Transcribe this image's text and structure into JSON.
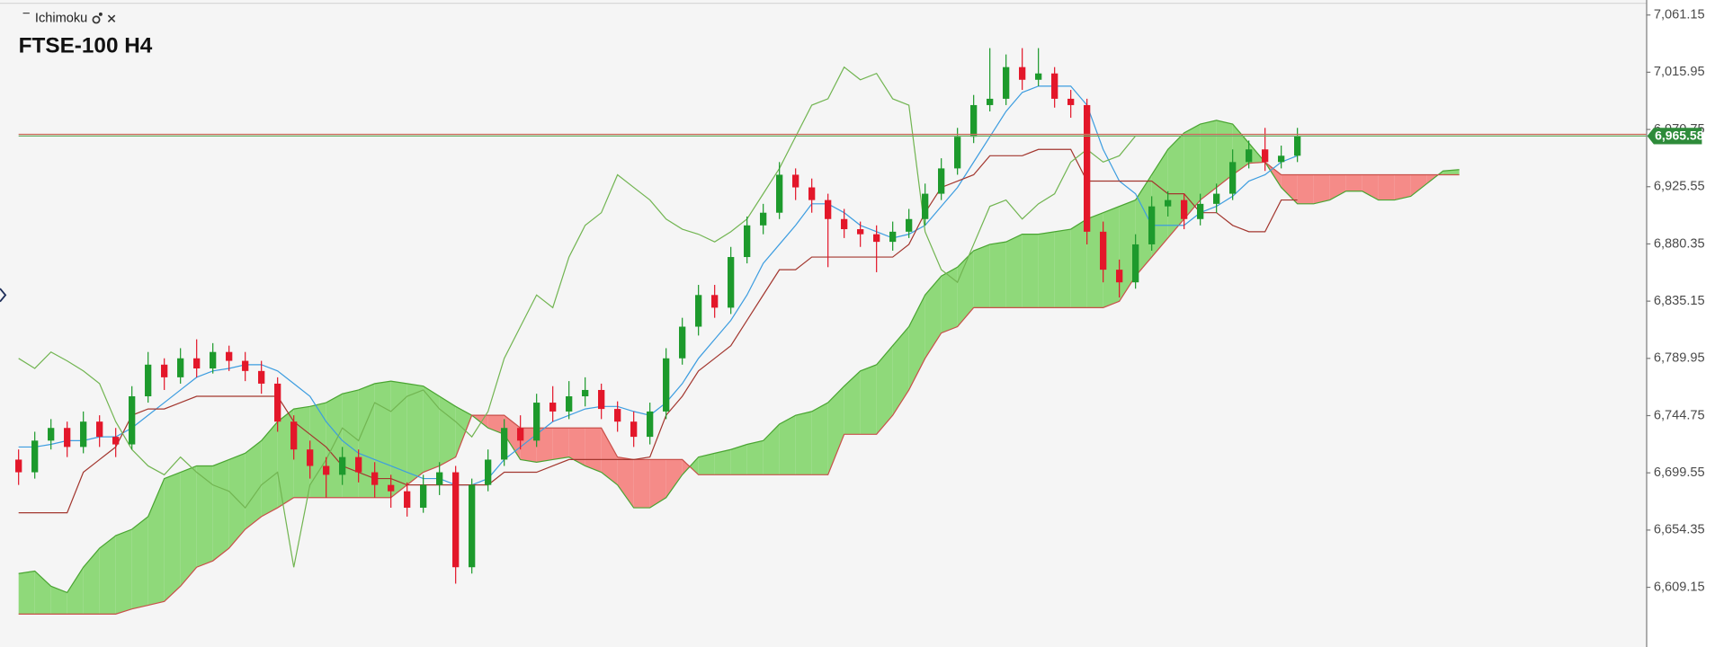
{
  "indicator": "Ichimoku",
  "chart_data": {
    "type": "candlestick",
    "title": "FTSE-100 H4",
    "up_color": "#1d9a2c",
    "down_color": "#e3172a",
    "open": [
      6710,
      6700,
      6725,
      6735,
      6720,
      6740,
      6728,
      6722,
      6760,
      6785,
      6775,
      6790,
      6782,
      6795,
      6788,
      6780,
      6770,
      6740,
      6718,
      6705,
      6698,
      6712,
      6700,
      6690,
      6685,
      6672,
      6690,
      6700,
      6625,
      6690,
      6710,
      6735,
      6725,
      6755,
      6748,
      6760,
      6765,
      6750,
      6740,
      6728,
      6748,
      6790,
      6815,
      6840,
      6830,
      6870,
      6895,
      6905,
      6935,
      6925,
      6915,
      6900,
      6892,
      6888,
      6882,
      6890,
      6900,
      6920,
      6940,
      6965,
      6990,
      6995,
      7020,
      7010,
      7015,
      6995,
      6990,
      6890,
      6860,
      6850,
      6880,
      6910,
      6915,
      6900,
      6912,
      6920,
      6945,
      6955,
      6945,
      6950
    ],
    "high": [
      6718,
      6732,
      6742,
      6740,
      6748,
      6745,
      6735,
      6768,
      6795,
      6790,
      6798,
      6805,
      6802,
      6800,
      6795,
      6788,
      6775,
      6745,
      6725,
      6712,
      6720,
      6718,
      6708,
      6698,
      6692,
      6698,
      6708,
      6705,
      6695,
      6718,
      6742,
      6745,
      6762,
      6768,
      6772,
      6775,
      6770,
      6756,
      6748,
      6755,
      6798,
      6822,
      6848,
      6848,
      6878,
      6902,
      6912,
      6945,
      6940,
      6932,
      6920,
      6908,
      6898,
      6895,
      6898,
      6908,
      6928,
      6948,
      6972,
      6998,
      7035,
      7030,
      7035,
      7035,
      7020,
      7002,
      6995,
      6898,
      6868,
      6888,
      6918,
      6922,
      6920,
      6920,
      6928,
      6955,
      6962,
      6972,
      6958,
      6972
    ],
    "low": [
      6690,
      6695,
      6718,
      6712,
      6715,
      6720,
      6712,
      6718,
      6755,
      6765,
      6770,
      6775,
      6778,
      6780,
      6772,
      6762,
      6732,
      6710,
      6695,
      6680,
      6690,
      6692,
      6680,
      6672,
      6665,
      6668,
      6682,
      6612,
      6620,
      6685,
      6705,
      6718,
      6720,
      6740,
      6742,
      6752,
      6742,
      6732,
      6720,
      6722,
      6742,
      6785,
      6808,
      6822,
      6825,
      6865,
      6888,
      6900,
      6915,
      6905,
      6862,
      6885,
      6878,
      6858,
      6875,
      6885,
      6895,
      6915,
      6935,
      6960,
      6985,
      6990,
      7002,
      7005,
      6988,
      6980,
      6880,
      6850,
      6838,
      6845,
      6875,
      6902,
      6892,
      6895,
      6905,
      6915,
      6940,
      6938,
      6940,
      6945
    ],
    "close": [
      6700,
      6725,
      6735,
      6720,
      6740,
      6728,
      6722,
      6760,
      6785,
      6775,
      6790,
      6782,
      6795,
      6788,
      6780,
      6770,
      6740,
      6718,
      6705,
      6698,
      6712,
      6700,
      6690,
      6685,
      6672,
      6690,
      6700,
      6625,
      6690,
      6710,
      6735,
      6725,
      6755,
      6748,
      6760,
      6765,
      6750,
      6740,
      6728,
      6748,
      6790,
      6815,
      6840,
      6830,
      6870,
      6895,
      6905,
      6935,
      6925,
      6915,
      6900,
      6892,
      6888,
      6882,
      6890,
      6900,
      6920,
      6940,
      6965,
      6990,
      6995,
      7020,
      7010,
      7015,
      6995,
      6990,
      6890,
      6860,
      6850,
      6880,
      6910,
      6915,
      6900,
      6912,
      6920,
      6945,
      6955,
      6945,
      6950,
      6965.58
    ],
    "lines": [
      {
        "color": "#3d9de0",
        "values": [
          6720,
          6720,
          6722,
          6725,
          6725,
          6728,
          6728,
          6735,
          6745,
          6755,
          6765,
          6775,
          6780,
          6782,
          6785,
          6785,
          6780,
          6770,
          6760,
          6740,
          6725,
          6715,
          6710,
          6705,
          6700,
          6695,
          6695,
          6690,
          6690,
          6695,
          6710,
          6720,
          6730,
          6740,
          6745,
          6750,
          6752,
          6752,
          6748,
          6745,
          6755,
          6770,
          6790,
          6805,
          6820,
          6840,
          6865,
          6880,
          6895,
          6912,
          6912,
          6905,
          6895,
          6890,
          6885,
          6888,
          6895,
          6910,
          6925,
          6945,
          6965,
          6985,
          7000,
          7005,
          7005,
          7005,
          6990,
          6955,
          6930,
          6920,
          6895,
          6895,
          6895,
          6905,
          6910,
          6918,
          6930,
          6935,
          6945,
          6950
        ]
      },
      {
        "color": "#a3372f",
        "values": [
          6668,
          6668,
          6668,
          6668,
          6700,
          6710,
          6720,
          6745,
          6750,
          6750,
          6755,
          6760,
          6760,
          6760,
          6760,
          6760,
          6760,
          6740,
          6730,
          6720,
          6705,
          6700,
          6695,
          6695,
          6690,
          6690,
          6690,
          6690,
          6690,
          6690,
          6700,
          6700,
          6700,
          6705,
          6710,
          6710,
          6710,
          6710,
          6710,
          6712,
          6745,
          6760,
          6780,
          6790,
          6800,
          6820,
          6840,
          6860,
          6860,
          6870,
          6870,
          6870,
          6870,
          6870,
          6870,
          6880,
          6905,
          6925,
          6930,
          6935,
          6950,
          6950,
          6950,
          6955,
          6955,
          6955,
          6930,
          6930,
          6930,
          6930,
          6930,
          6920,
          6920,
          6905,
          6905,
          6895,
          6890,
          6890,
          6915,
          6915
        ]
      },
      {
        "color": "#72b552",
        "values": [
          6790,
          6782,
          6795,
          6788,
          6780,
          6770,
          6740,
          6718,
          6705,
          6698,
          6712,
          6700,
          6690,
          6685,
          6672,
          6690,
          6700,
          6625,
          6690,
          6710,
          6735,
          6725,
          6755,
          6748,
          6760,
          6765,
          6750,
          6740,
          6728,
          6748,
          6790,
          6815,
          6840,
          6830,
          6870,
          6895,
          6905,
          6935,
          6925,
          6915,
          6900,
          6892,
          6888,
          6882,
          6890,
          6900,
          6920,
          6940,
          6965,
          6990,
          6995,
          7020,
          7010,
          7015,
          6995,
          6990,
          6890,
          6860,
          6850,
          6880,
          6910,
          6915,
          6900,
          6912,
          6920,
          6945,
          6955,
          6945,
          6950,
          6965.58
        ]
      }
    ],
    "cloud": {
      "up_fill": "#8fd97a",
      "down_fill": "#f58b88",
      "span_a": {
        "color": "#4aa532",
        "values": [
          6620,
          6622,
          6610,
          6605,
          6625,
          6640,
          6650,
          6655,
          6665,
          6695,
          6700,
          6705,
          6705,
          6710,
          6715,
          6725,
          6740,
          6750,
          6752,
          6755,
          6762,
          6765,
          6770,
          6772,
          6770,
          6768,
          6760,
          6752,
          6745,
          6735,
          6730,
          6710,
          6708,
          6710,
          6712,
          6705,
          6700,
          6690,
          6672,
          6672,
          6680,
          6698,
          6712,
          6715,
          6718,
          6722,
          6725,
          6738,
          6745,
          6748,
          6755,
          6768,
          6780,
          6785,
          6800,
          6815,
          6840,
          6855,
          6862,
          6875,
          6880,
          6882,
          6888,
          6888,
          6890,
          6892,
          6900,
          6905,
          6910,
          6915,
          6935,
          6955,
          6968,
          6975,
          6978,
          6975,
          6960,
          6945,
          6925,
          6912,
          6912,
          6915,
          6922,
          6922,
          6915,
          6915,
          6918,
          6928,
          6938,
          6939
        ]
      },
      "span_b": {
        "color": "#c9504a",
        "values": [
          6588,
          6588,
          6588,
          6588,
          6588,
          6588,
          6588,
          6592,
          6595,
          6598,
          6610,
          6625,
          6630,
          6640,
          6655,
          6665,
          6672,
          6680,
          6680,
          6680,
          6680,
          6680,
          6680,
          6680,
          6690,
          6700,
          6705,
          6712,
          6745,
          6745,
          6745,
          6735,
          6735,
          6735,
          6735,
          6735,
          6735,
          6712,
          6710,
          6710,
          6710,
          6710,
          6698,
          6698,
          6698,
          6698,
          6698,
          6698,
          6698,
          6698,
          6698,
          6730,
          6730,
          6730,
          6745,
          6765,
          6790,
          6810,
          6815,
          6830,
          6830,
          6830,
          6830,
          6830,
          6830,
          6830,
          6830,
          6830,
          6835,
          6855,
          6870,
          6885,
          6900,
          6915,
          6925,
          6935,
          6944,
          6945,
          6935,
          6935,
          6935,
          6935,
          6935,
          6935,
          6935,
          6935,
          6935,
          6935,
          6935,
          6935
        ]
      }
    },
    "last_price": {
      "value": 6965.58,
      "label": "6,965.58"
    },
    "price_color": "#2e8b3a",
    "ylim": [
      6562,
      7073
    ],
    "yticks": [
      {
        "value": 7061.15,
        "label": "7,061.15"
      },
      {
        "value": 7015.95,
        "label": "7,015.95"
      },
      {
        "value": 6970.75,
        "label": "6,970.75"
      },
      {
        "value": 6925.55,
        "label": "6,925.55"
      },
      {
        "value": 6880.35,
        "label": "6,880.35"
      },
      {
        "value": 6835.15,
        "label": "6,835.15"
      },
      {
        "value": 6789.95,
        "label": "6,789.95"
      },
      {
        "value": 6744.75,
        "label": "6,744.75"
      },
      {
        "value": 6699.55,
        "label": "6,699.55"
      },
      {
        "value": 6654.35,
        "label": "6,654.35"
      },
      {
        "value": 6609.15,
        "label": "6,609.15"
      }
    ]
  }
}
